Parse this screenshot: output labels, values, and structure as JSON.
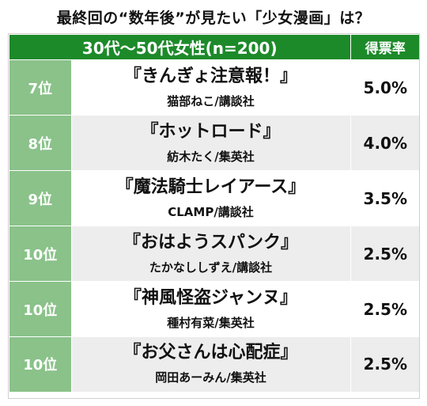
{
  "title": "最終回の“数年後”が見たい「少女漫画」は？",
  "header": {
    "group": "30代〜50代女性(n=200)",
    "rate": "得票率"
  },
  "rows": [
    {
      "rank": "7位",
      "work": "『きんぎょ注意報！』",
      "author": "猫部ねこ/講談社",
      "rate": "5.0%"
    },
    {
      "rank": "8位",
      "work": "『ホットロード』",
      "author": "紡木たく/集英社",
      "rate": "4.0%"
    },
    {
      "rank": "9位",
      "work": "『魔法騎士レイアース』",
      "author": "CLAMP/講談社",
      "rate": "3.5%"
    },
    {
      "rank": "10位",
      "work": "『おはようスパンク』",
      "author": "たかなししずえ/講談社",
      "rate": "2.5%"
    },
    {
      "rank": "10位",
      "work": "『神風怪盗ジャンヌ』",
      "author": "種村有菜/集英社",
      "rate": "2.5%"
    },
    {
      "rank": "10位",
      "work": "『お父さんは心配症』",
      "author": "岡田あーみん/集英社",
      "rate": "2.5%"
    }
  ],
  "colors": {
    "header_green": "#1d8a2a",
    "rank_green": "#8ac28a",
    "stripe": "#ededed"
  }
}
